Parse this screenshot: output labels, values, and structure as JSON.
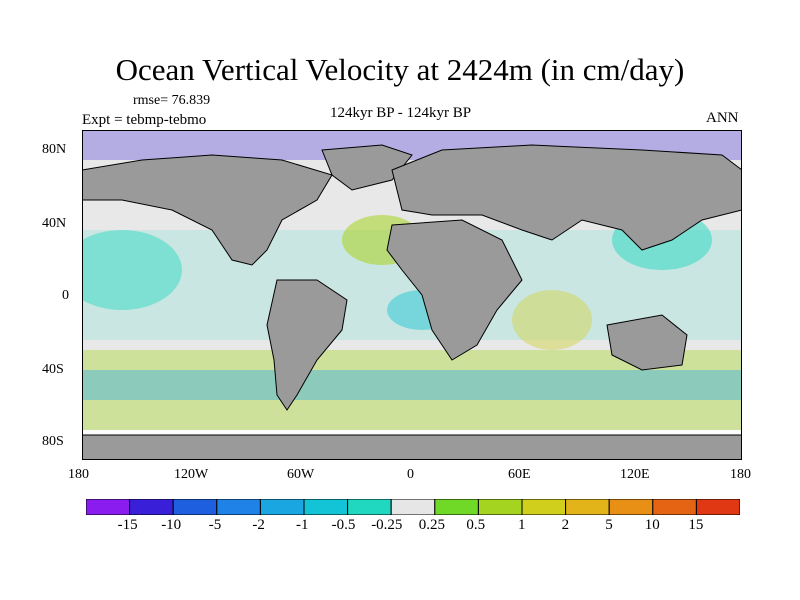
{
  "title": "Ocean Vertical Velocity at 2424m (in cm/day)",
  "rmse_label": "rmse= 76.839",
  "expt_label": "Expt = tebmp-tebmo",
  "period_label": "124kyr BP - 124kyr BP",
  "season_label": "ANN",
  "colors": {
    "land": "#9a9a9a",
    "coast": "#000000",
    "near_zero": "#e8e8e8"
  },
  "axes": {
    "y_ticks": [
      "80N",
      "40N",
      "0",
      "40S",
      "80S"
    ],
    "x_ticks": [
      "180",
      "120W",
      "60W",
      "0",
      "60E",
      "120E",
      "180"
    ]
  },
  "colorbar": {
    "colors": [
      "#8a1cf0",
      "#3a1fd8",
      "#1e5fe0",
      "#1f82e6",
      "#1aa6e0",
      "#13c4d6",
      "#20d8c0",
      "#e6e6e6",
      "#70d826",
      "#a4d420",
      "#cfcf1c",
      "#e2b419",
      "#e89016",
      "#e46414",
      "#e03812"
    ],
    "labels": [
      "-15",
      "-10",
      "-5",
      "-2",
      "-1",
      "-0.5",
      "-0.25",
      "0.25",
      "0.5",
      "1",
      "2",
      "5",
      "10",
      "15"
    ]
  }
}
